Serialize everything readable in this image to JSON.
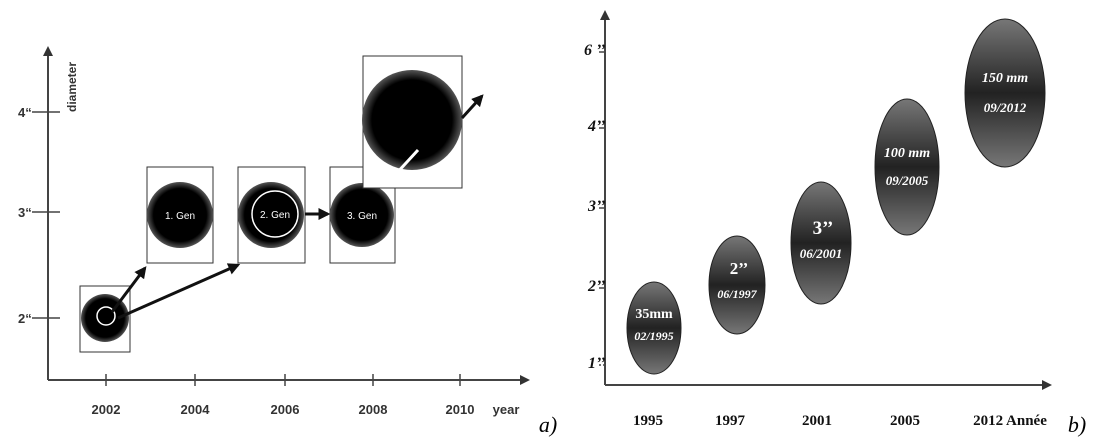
{
  "panel_a": {
    "x_axis": {
      "label": "year",
      "ticks": [
        "2002",
        "2004",
        "2006",
        "2008",
        "2010"
      ]
    },
    "y_axis": {
      "label": "diameter",
      "ticks": [
        "2“",
        "3“",
        "4“"
      ]
    },
    "wafers": [
      "1. Gen",
      "2. Gen",
      "3. Gen"
    ],
    "caption": "a)"
  },
  "panel_b": {
    "x_axis": {
      "ticks": [
        "1995",
        "1997",
        "2001",
        "2005",
        "2012 Année"
      ]
    },
    "y_axis": {
      "ticks": [
        "1’’",
        "2’’",
        "3’’",
        "4’’",
        "6 ’’"
      ]
    },
    "wafers": [
      {
        "size": "35mm",
        "date": "02/1995"
      },
      {
        "size": "2’’",
        "date": "06/1997"
      },
      {
        "size": "3’’",
        "date": "06/2001"
      },
      {
        "size": "100 mm",
        "date": "09/2005"
      },
      {
        "size": "150 mm",
        "date": "09/2012"
      }
    ],
    "caption": "b)"
  }
}
